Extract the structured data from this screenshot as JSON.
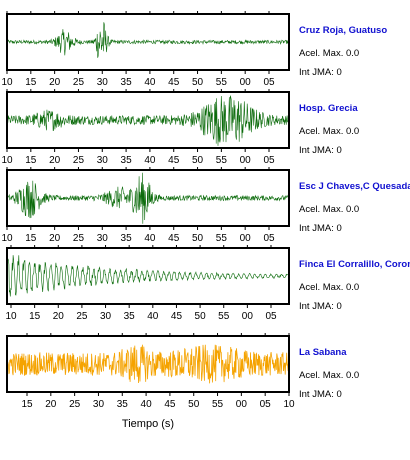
{
  "chart_data": [
    {
      "type": "line",
      "station": "Cruz Roja, Guatuso",
      "accel_label": "Acel. Max. 0.0",
      "jma_label": "Int JMA: 0",
      "tick_labels": [
        "10",
        "15",
        "20",
        "25",
        "30",
        "35",
        "40",
        "45",
        "50",
        "55",
        "00",
        "05"
      ],
      "color": "#0b6b0b",
      "signal": {
        "noise": 0.07,
        "bursts": [
          [
            0.205,
            0.03,
            0.45
          ],
          [
            0.335,
            0.018,
            1.0
          ]
        ],
        "decay": false
      }
    },
    {
      "type": "line",
      "station": "Hosp. Grecia",
      "accel_label": "Acel. Max. 0.0",
      "jma_label": "Int JMA: 0",
      "tick_labels": [
        "10",
        "15",
        "20",
        "25",
        "30",
        "35",
        "40",
        "45",
        "50",
        "55",
        "00",
        "05"
      ],
      "color": "#0b6b0b",
      "signal": {
        "noise": 0.18,
        "bursts": [
          [
            0.78,
            0.09,
            0.95
          ],
          [
            0.15,
            0.05,
            0.25
          ]
        ],
        "decay": false
      }
    },
    {
      "type": "line",
      "station": "Esc J Chaves,C Quesada",
      "accel_label": "Acel. Max. 0.0",
      "jma_label": "Int JMA: 0",
      "tick_labels": [
        "10",
        "15",
        "20",
        "25",
        "30",
        "35",
        "40",
        "45",
        "50",
        "55",
        "00",
        "05"
      ],
      "color": "#0b6b0b",
      "signal": {
        "noise": 0.1,
        "bursts": [
          [
            0.08,
            0.04,
            0.7
          ],
          [
            0.48,
            0.03,
            1.0
          ],
          [
            0.4,
            0.05,
            0.35
          ]
        ],
        "decay": false
      }
    },
    {
      "type": "line",
      "station": "Finca El Corralillo, Coronado",
      "accel_label": "Acel. Max. 0.0",
      "jma_label": "Int JMA: 0",
      "tick_labels": [
        "10",
        "15",
        "20",
        "25",
        "30",
        "35",
        "40",
        "45",
        "50",
        "55",
        "00",
        "05"
      ],
      "color": "#0b6b0b",
      "signal": {
        "noise": 0.08,
        "bursts": [],
        "decay": true
      }
    },
    {
      "type": "line",
      "station": "La Sabana",
      "accel_label": "Acel. Max. 0.0",
      "jma_label": "Int JMA: 0",
      "tick_labels": [
        "15",
        "20",
        "25",
        "30",
        "35",
        "40",
        "45",
        "50",
        "55",
        "00",
        "05",
        "10"
      ],
      "color": "#f5a300",
      "signal": {
        "noise": 0.45,
        "bursts": [
          [
            0.46,
            0.05,
            0.35
          ],
          [
            0.72,
            0.12,
            0.3
          ]
        ],
        "decay": false
      }
    }
  ],
  "x_axis_title": "Tiempo (s)",
  "colors": {
    "station_name": "#1010d0",
    "frame": "#000000"
  }
}
